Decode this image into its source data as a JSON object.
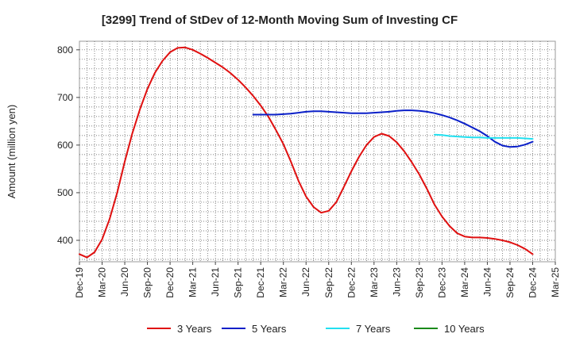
{
  "chart_data": {
    "type": "line",
    "title": "[3299]  Trend of StDev of 12-Month Moving Sum of Investing CF",
    "xlabel": "",
    "ylabel": "Amount (million yen)",
    "ylim": [
      355,
      818
    ],
    "yticks": [
      400,
      500,
      600,
      700,
      800
    ],
    "x_range": [
      "2019-12",
      "2025-03"
    ],
    "categories": [
      "Dec-19",
      "Mar-20",
      "Jun-20",
      "Sep-20",
      "Dec-20",
      "Mar-21",
      "Jun-21",
      "Sep-21",
      "Dec-21",
      "Mar-22",
      "Jun-22",
      "Sep-22",
      "Dec-22",
      "Mar-23",
      "Jun-23",
      "Sep-23",
      "Dec-23",
      "Mar-24",
      "Jun-24",
      "Sep-24",
      "Dec-24",
      "Mar-25"
    ],
    "grid": true,
    "legend_position": "bottom",
    "series": [
      {
        "name": "3 Years",
        "color": "#e01010",
        "x": [
          "2019-12",
          "2020-01",
          "2020-02",
          "2020-03",
          "2020-04",
          "2020-05",
          "2020-06",
          "2020-07",
          "2020-08",
          "2020-09",
          "2020-10",
          "2020-11",
          "2020-12",
          "2021-01",
          "2021-02",
          "2021-03",
          "2021-04",
          "2021-05",
          "2021-06",
          "2021-07",
          "2021-08",
          "2021-09",
          "2021-10",
          "2021-11",
          "2021-12",
          "2022-01",
          "2022-02",
          "2022-03",
          "2022-04",
          "2022-05",
          "2022-06",
          "2022-07",
          "2022-08",
          "2022-09",
          "2022-10",
          "2022-11",
          "2022-12",
          "2023-01",
          "2023-02",
          "2023-03",
          "2023-04",
          "2023-05",
          "2023-06",
          "2023-07",
          "2023-08",
          "2023-09",
          "2023-10",
          "2023-11",
          "2023-12",
          "2024-01",
          "2024-02",
          "2024-03",
          "2024-04",
          "2024-05",
          "2024-06",
          "2024-07",
          "2024-08",
          "2024-09",
          "2024-10",
          "2024-11",
          "2024-12"
        ],
        "values": [
          371,
          364,
          375,
          402,
          445,
          500,
          565,
          625,
          675,
          718,
          752,
          777,
          795,
          804,
          805,
          800,
          792,
          783,
          773,
          763,
          751,
          737,
          721,
          703,
          683,
          660,
          632,
          602,
          565,
          525,
          492,
          470,
          458,
          462,
          480,
          512,
          545,
          575,
          600,
          617,
          624,
          619,
          606,
          587,
          564,
          538,
          508,
          475,
          450,
          430,
          415,
          408,
          406,
          406,
          405,
          403,
          400,
          396,
          390,
          382,
          371
        ]
      },
      {
        "name": "5 Years",
        "color": "#0a1fc8",
        "x": [
          "2021-11",
          "2021-12",
          "2022-01",
          "2022-02",
          "2022-03",
          "2022-04",
          "2022-05",
          "2022-06",
          "2022-07",
          "2022-08",
          "2022-09",
          "2022-10",
          "2022-11",
          "2022-12",
          "2023-01",
          "2023-02",
          "2023-03",
          "2023-04",
          "2023-05",
          "2023-06",
          "2023-07",
          "2023-08",
          "2023-09",
          "2023-10",
          "2023-11",
          "2023-12",
          "2024-01",
          "2024-02",
          "2024-03",
          "2024-04",
          "2024-05",
          "2024-06",
          "2024-07",
          "2024-08",
          "2024-09",
          "2024-10",
          "2024-11",
          "2024-12"
        ],
        "values": [
          664,
          664,
          664,
          664,
          665,
          666,
          668,
          670,
          671,
          671,
          670,
          669,
          668,
          667,
          667,
          667,
          668,
          669,
          670,
          672,
          673,
          673,
          672,
          670,
          667,
          663,
          658,
          652,
          645,
          637,
          629,
          619,
          607,
          599,
          596,
          597,
          601,
          607
        ]
      },
      {
        "name": "7 Years",
        "color": "#22e0f0",
        "x": [
          "2023-11",
          "2023-12",
          "2024-01",
          "2024-02",
          "2024-03",
          "2024-04",
          "2024-05",
          "2024-06",
          "2024-07",
          "2024-08",
          "2024-09",
          "2024-10",
          "2024-11",
          "2024-12"
        ],
        "values": [
          622,
          621,
          619,
          618,
          617,
          616,
          616,
          615,
          615,
          615,
          615,
          615,
          614,
          613
        ]
      },
      {
        "name": "10 Years",
        "color": "#1a8a1a",
        "x": [],
        "values": []
      }
    ]
  }
}
